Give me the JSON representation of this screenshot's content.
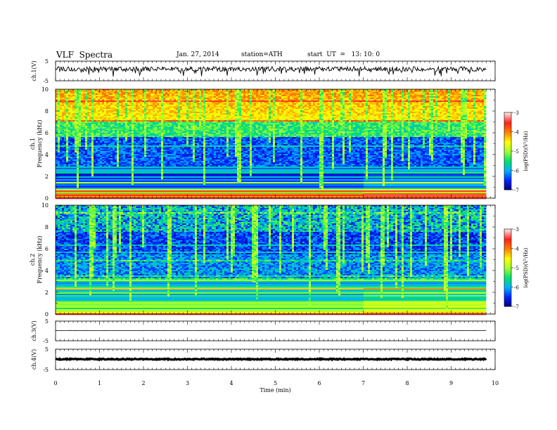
{
  "header": {
    "title": "VLF  Spectra",
    "date": "Jan. 27, 2014",
    "station": "station=ATH",
    "start": "start  UT  =   13: 10: 0"
  },
  "chart_data": [
    {
      "type": "line",
      "panel": "ch1-waveform",
      "ylabel": "ch.1(V)",
      "ylim": [
        -5,
        5
      ],
      "y_ticks": [
        "5",
        "-5"
      ],
      "x_range": [
        0,
        9.8
      ],
      "baseline": 1.0,
      "noise_amplitude": 1.2
    },
    {
      "type": "heatmap",
      "panel": "ch1-spectrogram",
      "ylabel": [
        "ch.1",
        "Frequency  (kHz)"
      ],
      "ylim": [
        0,
        10
      ],
      "y_ticks": [
        "0",
        "2",
        "4",
        "6",
        "8",
        "10"
      ],
      "x_range": [
        0,
        9.8
      ],
      "colorbar": {
        "label": "log(PSD)(V²/Hz)",
        "ticks": [
          "-3",
          "-4",
          "-5",
          "-6",
          "-7"
        ],
        "range": [
          -7,
          -3
        ],
        "colors": [
          "#000070",
          "#0020ff",
          "#00b0ff",
          "#00e070",
          "#a0ff30",
          "#ffff00",
          "#ff8000",
          "#ff2020",
          "#ffe0e0"
        ]
      }
    },
    {
      "type": "heatmap",
      "panel": "ch2-spectrogram",
      "ylabel": [
        "ch.2",
        "Frequency  (kHz)"
      ],
      "ylim": [
        0,
        10
      ],
      "y_ticks": [
        "0",
        "2",
        "4",
        "6",
        "8",
        "10"
      ],
      "x_range": [
        0,
        9.8
      ],
      "colorbar": {
        "label": "log(PSD)(V²/Hz)",
        "ticks": [
          "-3",
          "-4",
          "-5",
          "-6",
          "-7"
        ],
        "range": [
          -7,
          -3
        ]
      }
    },
    {
      "type": "line",
      "panel": "ch3-waveform",
      "ylabel": "ch.3(V)",
      "ylim": [
        -5,
        5
      ],
      "y_ticks": [
        "5",
        "-5"
      ],
      "x_range": [
        0,
        9.8
      ],
      "baseline": 0.2,
      "noise_amplitude": 0.05
    },
    {
      "type": "line",
      "panel": "ch4-waveform",
      "ylabel": "ch.4(V)",
      "ylim": [
        -5,
        5
      ],
      "y_ticks": [
        "5",
        "-5"
      ],
      "x_range": [
        0,
        9.8
      ],
      "baseline": 0.1,
      "noise_amplitude": 0.25
    }
  ],
  "x_axis": {
    "label": "Time  (min)",
    "range": [
      0,
      10
    ],
    "ticks": [
      "0",
      "1",
      "2",
      "3",
      "4",
      "5",
      "6",
      "7",
      "8",
      "9",
      "10"
    ]
  }
}
